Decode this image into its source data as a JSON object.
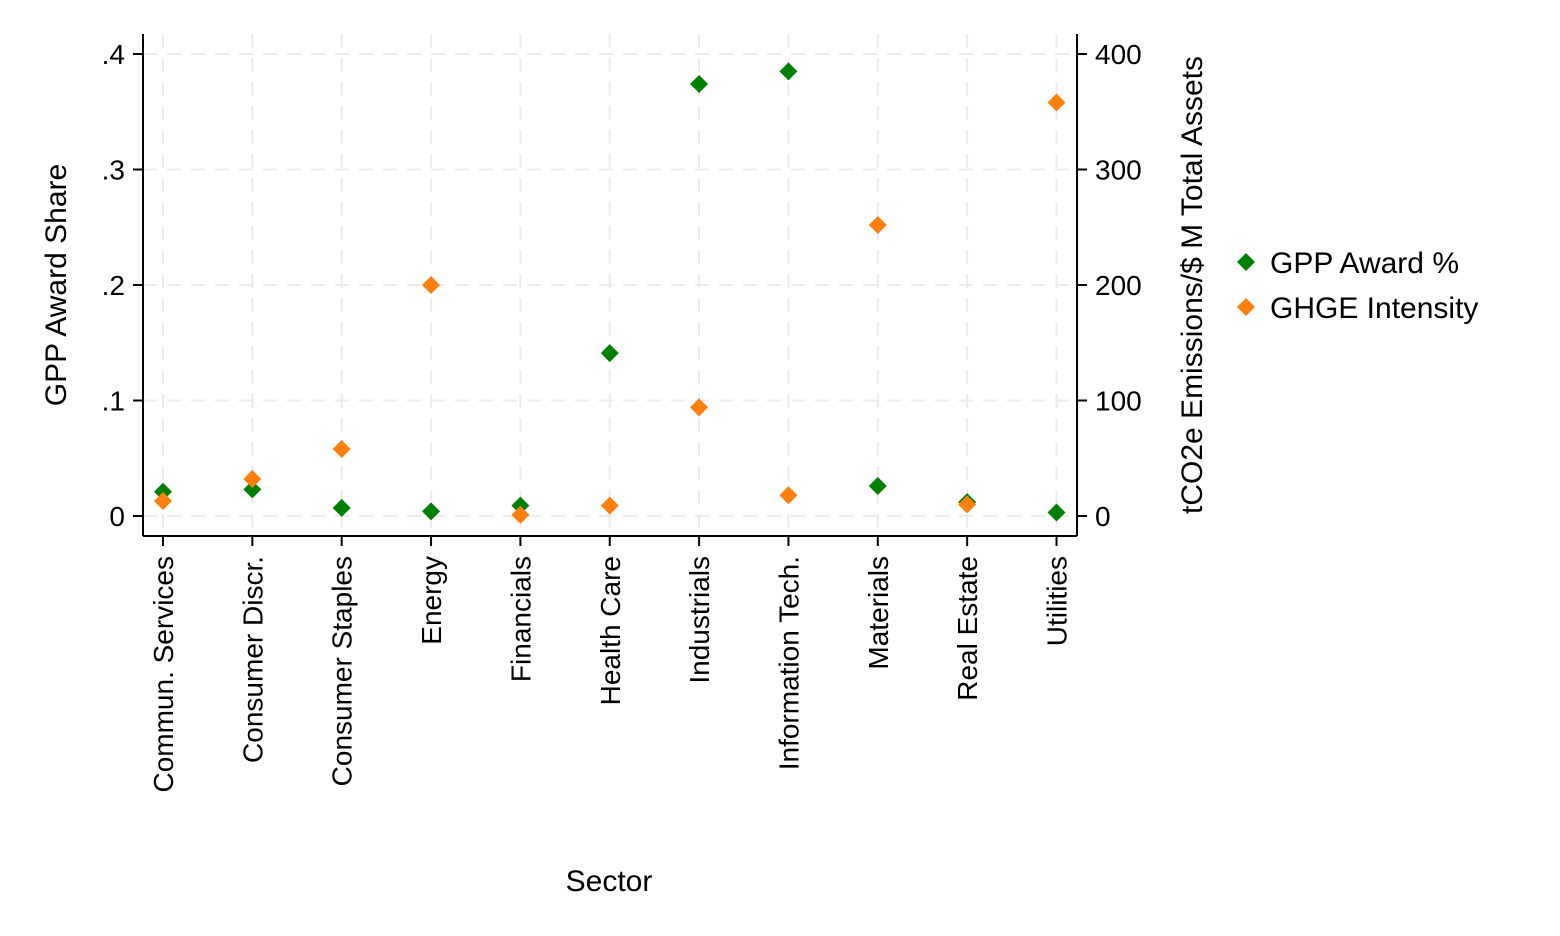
{
  "chart_data": {
    "type": "scatter",
    "xlabel": "Sector",
    "ylabel_left": "GPP Award Share",
    "ylabel_right": "tCO2e Emissions/$ M Total Assets",
    "categories": [
      "Commun. Services",
      "Consumer Discr.",
      "Consumer Staples",
      "Energy",
      "Financials",
      "Health Care",
      "Industrials",
      "Information Tech.",
      "Materials",
      "Real Estate",
      "Utilities"
    ],
    "y_left": {
      "min": 0,
      "max": 0.4,
      "ticks": [
        0,
        0.1,
        0.2,
        0.3,
        0.4
      ],
      "tick_labels": [
        "0",
        ".1",
        ".2",
        ".3",
        ".4"
      ]
    },
    "y_right": {
      "min": 0,
      "max": 400,
      "ticks": [
        0,
        100,
        200,
        300,
        400
      ],
      "tick_labels": [
        "0",
        "100",
        "200",
        "300",
        "400"
      ]
    },
    "grid": true,
    "legend_position": "right",
    "series": [
      {
        "name": "GPP Award %",
        "axis": "left",
        "color": "#008000",
        "marker": "diamond",
        "values": [
          0.021,
          0.023,
          0.007,
          0.004,
          0.009,
          0.141,
          0.374,
          0.385,
          0.026,
          0.012,
          0.003
        ]
      },
      {
        "name": "GHGE Intensity",
        "axis": "right",
        "color": "#ff7f0e",
        "marker": "diamond",
        "values": [
          13,
          32,
          58,
          200,
          1,
          9,
          94,
          18,
          252,
          10,
          358
        ]
      }
    ]
  }
}
